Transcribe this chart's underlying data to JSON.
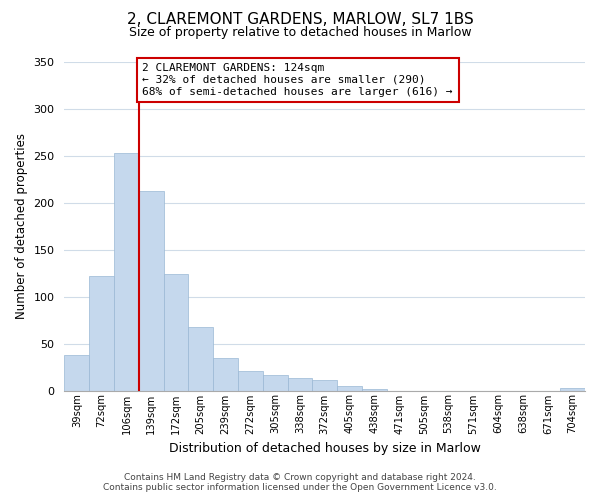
{
  "title": "2, CLAREMONT GARDENS, MARLOW, SL7 1BS",
  "subtitle": "Size of property relative to detached houses in Marlow",
  "xlabel": "Distribution of detached houses by size in Marlow",
  "ylabel": "Number of detached properties",
  "categories": [
    "39sqm",
    "72sqm",
    "106sqm",
    "139sqm",
    "172sqm",
    "205sqm",
    "239sqm",
    "272sqm",
    "305sqm",
    "338sqm",
    "372sqm",
    "405sqm",
    "438sqm",
    "471sqm",
    "505sqm",
    "538sqm",
    "571sqm",
    "604sqm",
    "638sqm",
    "671sqm",
    "704sqm"
  ],
  "values": [
    38,
    122,
    253,
    212,
    124,
    68,
    35,
    21,
    16,
    13,
    11,
    5,
    2,
    0,
    0,
    0,
    0,
    0,
    0,
    0,
    3
  ],
  "bar_color": "#c5d8ed",
  "bar_edge_color": "#9ab8d4",
  "vline_color": "#cc0000",
  "annotation_title": "2 CLAREMONT GARDENS: 124sqm",
  "annotation_line1": "← 32% of detached houses are smaller (290)",
  "annotation_line2": "68% of semi-detached houses are larger (616) →",
  "annotation_box_edge": "#cc0000",
  "ylim": [
    0,
    350
  ],
  "yticks": [
    0,
    50,
    100,
    150,
    200,
    250,
    300,
    350
  ],
  "footer1": "Contains HM Land Registry data © Crown copyright and database right 2024.",
  "footer2": "Contains public sector information licensed under the Open Government Licence v3.0.",
  "bg_color": "#ffffff",
  "grid_color": "#d0dce8"
}
